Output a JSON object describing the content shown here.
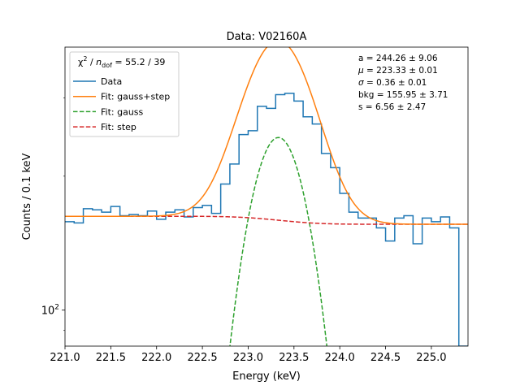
{
  "chart_data": {
    "type": "line",
    "title": "Data: V02160A",
    "xlabel": "Energy (keV)",
    "ylabel": "Counts / 0.1 keV",
    "xlim": [
      221.0,
      225.4
    ],
    "ylim": [
      83,
      390
    ],
    "yscale": "log",
    "xticks": [
      221.0,
      221.5,
      222.0,
      222.5,
      223.0,
      223.5,
      224.0,
      224.5,
      225.0
    ],
    "xtick_labels": [
      "221.0",
      "221.5",
      "222.0",
      "222.5",
      "223.0",
      "223.5",
      "224.0",
      "224.5",
      "225.0"
    ],
    "yticks": [
      100
    ],
    "ytick_labels": [
      "10^2"
    ],
    "legend": {
      "position": "top-left",
      "title": "χ² / n_dof = 55.2 / 39",
      "entries": [
        {
          "label": "Data",
          "color": "#1f77b4",
          "style": "solid"
        },
        {
          "label": "Fit: gauss+step",
          "color": "#ff7f0e",
          "style": "solid"
        },
        {
          "label": "Fit: gauss",
          "color": "#2ca02c",
          "style": "dashed"
        },
        {
          "label": "Fit: step",
          "color": "#d62728",
          "style": "dashed"
        }
      ]
    },
    "parameters": [
      "a = 244.26 ± 9.06",
      "μ = 223.33 ± 0.01",
      "σ = 0.36 ± 0.01",
      "bkg = 155.95 ± 3.71",
      "s = 6.56 ± 2.47"
    ],
    "data_histogram": {
      "bin_edges_start": 221.0,
      "bin_width": 0.1,
      "counts": [
        158,
        157,
        169,
        168,
        166,
        171,
        163,
        164,
        163,
        167,
        160,
        166,
        168,
        162,
        170,
        172,
        165,
        192,
        213,
        248,
        253,
        287,
        284,
        305,
        307,
        295,
        272,
        262,
        225,
        209,
        183,
        166,
        161,
        161,
        153,
        143,
        161,
        163,
        141,
        161,
        158,
        162,
        153,
        83
      ]
    },
    "fit_params": {
      "a": 244.26,
      "mu": 223.33,
      "sigma": 0.36,
      "bkg": 155.95,
      "s": 6.56
    },
    "series": [
      {
        "name": "Fit: gauss+step",
        "model": "gauss+step"
      },
      {
        "name": "Fit: gauss",
        "model": "gauss"
      },
      {
        "name": "Fit: step",
        "model": "step"
      }
    ]
  }
}
